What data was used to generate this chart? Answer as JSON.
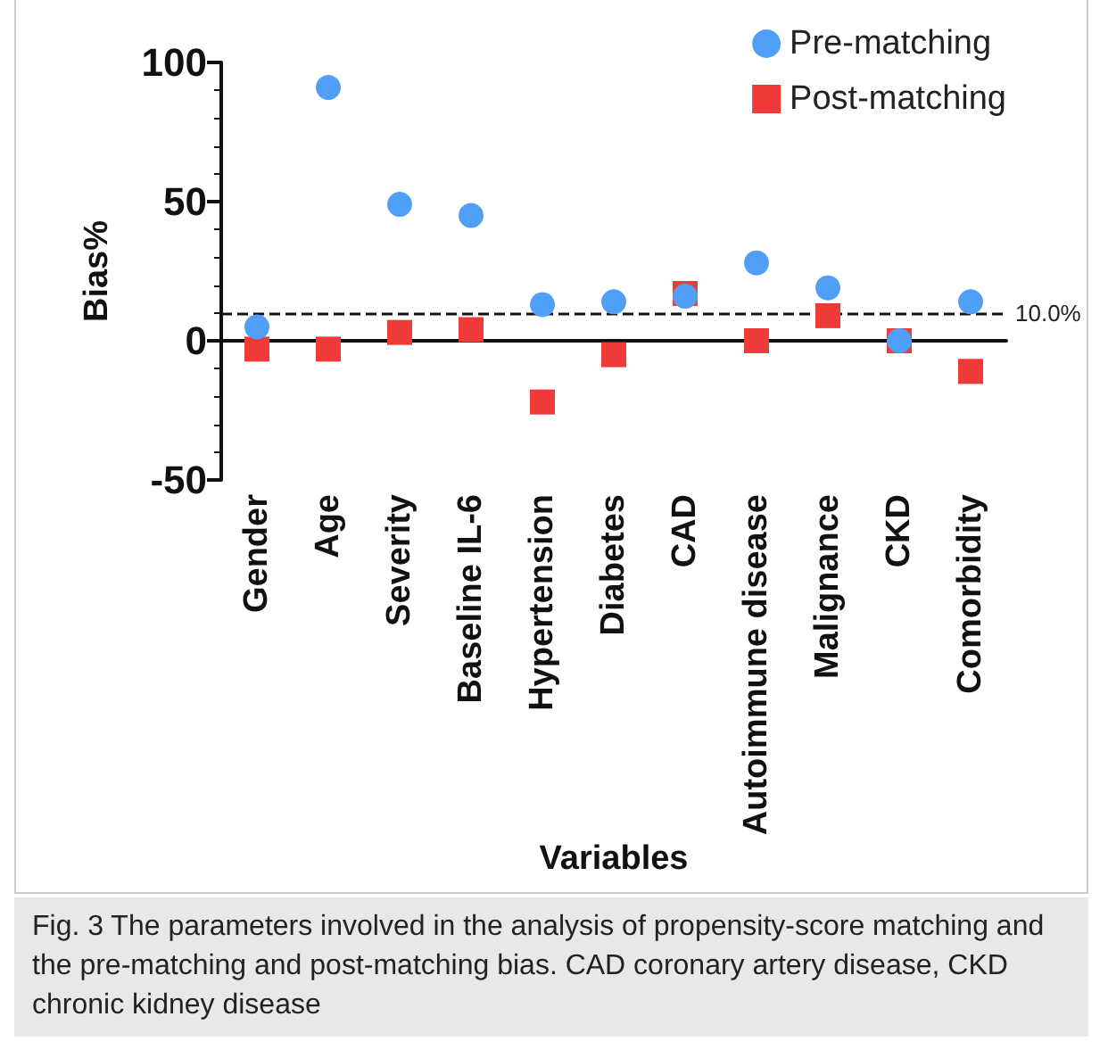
{
  "chart_data": {
    "type": "scatter",
    "xlabel": "Variables",
    "ylabel": "Bias%",
    "categories": [
      "Gender",
      "Age",
      "Severity",
      "Baseline IL-6",
      "Hypertension",
      "Diabetes",
      "CAD",
      "Autoimmune disease",
      "Malignance",
      "CKD",
      "Comorbidity"
    ],
    "series": [
      {
        "name": "Pre-matching",
        "color": "#4f9ef8",
        "marker": "circle",
        "values": [
          5,
          91,
          49,
          45,
          13,
          14,
          16,
          28,
          19,
          0,
          14
        ]
      },
      {
        "name": "Post-matching",
        "color": "#f03a3a",
        "marker": "square",
        "values": [
          -3,
          -3,
          3,
          4,
          -22,
          -5,
          17,
          0,
          9,
          0,
          -11
        ]
      }
    ],
    "ylim": [
      -50,
      100
    ],
    "yticks": [
      -50,
      0,
      50,
      100
    ],
    "ref_lines": [
      {
        "axis": "y",
        "value": 10,
        "label": "10.0%",
        "line_style": "dashed"
      }
    ],
    "legend": "top right",
    "annotations": [
      "Fig. 3 The parameters involved in the analysis of propensity-score matching and the pre-matching and post-matching bias. CAD coronary artery disease, CKD chronic kidney disease"
    ]
  }
}
